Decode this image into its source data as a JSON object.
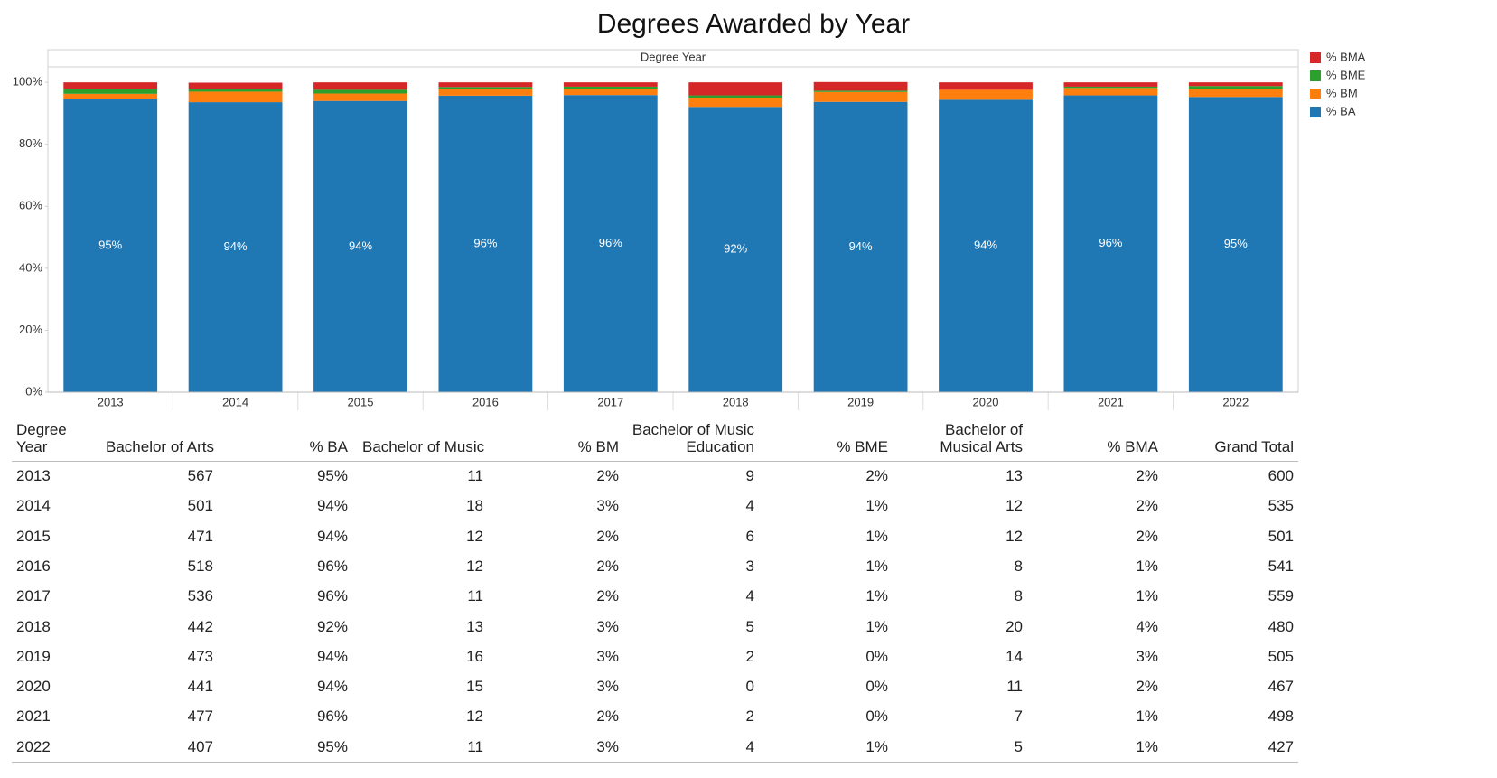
{
  "chart_data": {
    "type": "stacked_bar",
    "title": "Degrees Awarded by Year",
    "x_label": "Degree Year",
    "categories": [
      "2013",
      "2014",
      "2015",
      "2016",
      "2017",
      "2018",
      "2019",
      "2020",
      "2021",
      "2022"
    ],
    "series": [
      {
        "name": "% BA",
        "color": "#1f77b4",
        "values": [
          94.5,
          93.6,
          94.0,
          95.7,
          95.9,
          92.1,
          93.7,
          94.4,
          95.8,
          95.3
        ],
        "value_labels": [
          "95%",
          "94%",
          "94%",
          "96%",
          "96%",
          "92%",
          "94%",
          "94%",
          "96%",
          "95%"
        ]
      },
      {
        "name": "% BM",
        "color": "#ff7f0e",
        "values": [
          1.8,
          3.4,
          2.4,
          2.2,
          2.0,
          2.7,
          3.2,
          3.2,
          2.4,
          2.6
        ]
      },
      {
        "name": "% BME",
        "color": "#2ca02c",
        "values": [
          1.5,
          0.7,
          1.2,
          0.6,
          0.7,
          1.0,
          0.4,
          0,
          0.4,
          0.9
        ]
      },
      {
        "name": "% BMA",
        "color": "#d62728",
        "values": [
          2.2,
          2.2,
          2.4,
          1.5,
          1.4,
          4.2,
          2.8,
          2.4,
          1.4,
          1.2
        ]
      }
    ],
    "ylim": [
      0,
      105
    ],
    "yticks": [
      {
        "value": 0,
        "label": "0%"
      },
      {
        "value": 20,
        "label": "20%"
      },
      {
        "value": 40,
        "label": "40%"
      },
      {
        "value": 60,
        "label": "60%"
      },
      {
        "value": 80,
        "label": "80%"
      },
      {
        "value": 100,
        "label": "100%"
      }
    ],
    "grid": false,
    "legend": "right"
  },
  "table": {
    "columns": [
      "Degree Year",
      "Bachelor of Arts",
      "% BA",
      "Bachelor of Music",
      "% BM",
      "Bachelor of Music Education",
      "% BME",
      "Bachelor of Musical Arts",
      "% BMA",
      "Grand Total"
    ],
    "rows": [
      [
        "2013",
        "567",
        "95%",
        "11",
        "2%",
        "9",
        "2%",
        "13",
        "2%",
        "600"
      ],
      [
        "2014",
        "501",
        "94%",
        "18",
        "3%",
        "4",
        "1%",
        "12",
        "2%",
        "535"
      ],
      [
        "2015",
        "471",
        "94%",
        "12",
        "2%",
        "6",
        "1%",
        "12",
        "2%",
        "501"
      ],
      [
        "2016",
        "518",
        "96%",
        "12",
        "2%",
        "3",
        "1%",
        "8",
        "1%",
        "541"
      ],
      [
        "2017",
        "536",
        "96%",
        "11",
        "2%",
        "4",
        "1%",
        "8",
        "1%",
        "559"
      ],
      [
        "2018",
        "442",
        "92%",
        "13",
        "3%",
        "5",
        "1%",
        "20",
        "4%",
        "480"
      ],
      [
        "2019",
        "473",
        "94%",
        "16",
        "3%",
        "2",
        "0%",
        "14",
        "3%",
        "505"
      ],
      [
        "2020",
        "441",
        "94%",
        "15",
        "3%",
        "0",
        "0%",
        "11",
        "2%",
        "467"
      ],
      [
        "2021",
        "477",
        "96%",
        "12",
        "2%",
        "2",
        "0%",
        "7",
        "1%",
        "498"
      ],
      [
        "2022",
        "407",
        "95%",
        "11",
        "3%",
        "4",
        "1%",
        "5",
        "1%",
        "427"
      ]
    ]
  }
}
